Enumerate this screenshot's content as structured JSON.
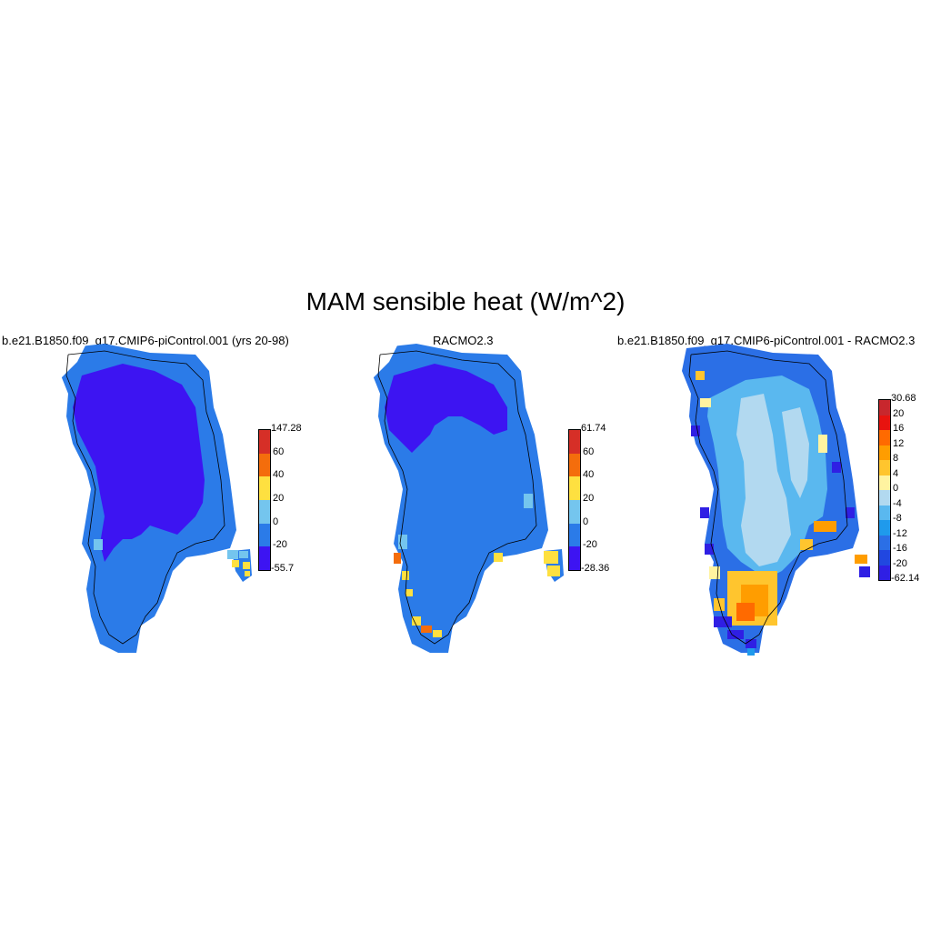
{
  "title": "MAM sensible heat (W/m^2)",
  "panels": [
    {
      "title": "b.e21.B1850.f09_g17.CMIP6-piControl.001 (yrs 20-98)",
      "colorbar": {
        "labels": [
          "147.28",
          "60",
          "40",
          "20",
          "0",
          "-20",
          "-55.7"
        ],
        "colors": [
          "#d62f27",
          "#f46d0c",
          "#fee040",
          "#74c5ee",
          "#2b7be8",
          "#3d14f2"
        ]
      }
    },
    {
      "title": "RACMO2.3",
      "colorbar": {
        "labels": [
          "61.74",
          "60",
          "40",
          "20",
          "0",
          "-20",
          "-28.36"
        ],
        "colors": [
          "#d62f27",
          "#f46d0c",
          "#fee040",
          "#74c5ee",
          "#2b7be8",
          "#3d14f2"
        ]
      }
    },
    {
      "title": "b.e21.B1850.f09_g17.CMIP6-piControl.001 - RACMO2.3",
      "colorbar": {
        "labels": [
          "30.68",
          "20",
          "16",
          "12",
          "8",
          "4",
          "0",
          "-4",
          "-8",
          "-12",
          "-16",
          "-20",
          "-62.14"
        ],
        "colors": [
          "#c8272d",
          "#e8130f",
          "#ff6a00",
          "#ff9d00",
          "#ffc52e",
          "#fff3a0",
          "#b2d9f0",
          "#5ab8ef",
          "#1f9aec",
          "#2b6fe6",
          "#2147e0",
          "#2f1fe4"
        ]
      }
    }
  ]
}
